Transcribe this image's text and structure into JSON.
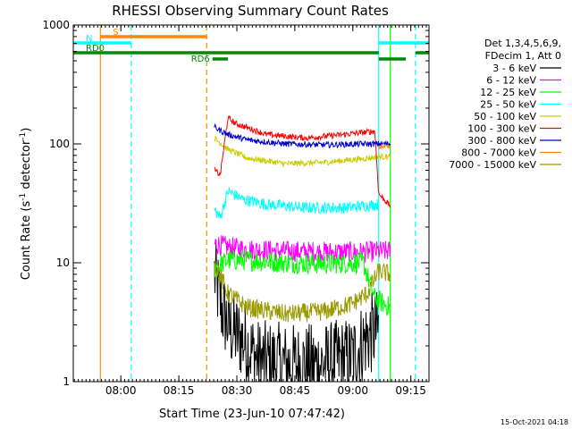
{
  "chart_data": {
    "type": "line",
    "title": "RHESSI Observing Summary Count Rates",
    "xlabel": "Start Time (23-Jun-10 07:47:42)",
    "ylabel_main": "Count Rate (s",
    "ylabel_sup": "-1",
    "ylabel_mid": " detector",
    "ylabel_end": ")",
    "x_unit": "minutes after 07:47:42",
    "xlim": [
      0,
      92
    ],
    "ylim": [
      1,
      1000
    ],
    "y_scale": "log",
    "x_ticks": [
      {
        "label": "08:00",
        "value": 12.3
      },
      {
        "label": "08:15",
        "value": 27.3
      },
      {
        "label": "08:30",
        "value": 42.3
      },
      {
        "label": "08:45",
        "value": 57.3
      },
      {
        "label": "09:00",
        "value": 72.3
      },
      {
        "label": "09:15",
        "value": 87.3
      }
    ],
    "y_ticks": [
      {
        "label": "1",
        "value": 1
      },
      {
        "label": "10",
        "value": 10
      },
      {
        "label": "100",
        "value": 100
      },
      {
        "label": "1000",
        "value": 1000
      }
    ],
    "legend_header": [
      "Det 1,3,4,5,6,9,",
      "FDecim 1, Att 0"
    ],
    "legend_position": "right",
    "footer_date": "15-Oct-2021 04:18",
    "series": [
      {
        "name": "3 - 6 keV",
        "color": "#000000",
        "start": 36.5,
        "end": 79.0,
        "x": [
          36.5,
          38.5,
          40.5,
          44,
          48,
          56,
          64,
          72,
          76,
          79
        ],
        "y": [
          8,
          4,
          2.8,
          2.2,
          1.5,
          1.4,
          1.4,
          1.6,
          2.4,
          2.7
        ],
        "noise": 0.35
      },
      {
        "name": "6 - 12 keV",
        "color": "#ff00ff",
        "start": 36.5,
        "end": 82.0,
        "x": [
          36.5,
          40,
          45,
          55,
          65,
          75,
          79,
          82
        ],
        "y": [
          14.5,
          13.5,
          13,
          12.5,
          12.3,
          12.3,
          12.5,
          12.5
        ],
        "noise": 0.09
      },
      {
        "name": "12 - 25 keV",
        "color": "#00ff00",
        "start": 36.5,
        "end": 82.0,
        "x": [
          36.5,
          40,
          45,
          55,
          65,
          75,
          78,
          82
        ],
        "y": [
          9,
          10.5,
          10.5,
          10,
          9.8,
          10,
          5,
          4.2
        ],
        "noise": 0.09
      },
      {
        "name": "25 - 50 keV",
        "color": "#00ffff",
        "start": 36.5,
        "end": 79.0,
        "x": [
          36.5,
          38,
          40,
          44,
          50,
          60,
          70,
          79
        ],
        "y": [
          28,
          24,
          40,
          34,
          31,
          29,
          29,
          31
        ],
        "noise": 0.05
      },
      {
        "name": "50 - 100 keV",
        "color": "#cccc00",
        "start": 36.5,
        "end": 82.0,
        "x": [
          36.5,
          40,
          45,
          55,
          65,
          75,
          79,
          82
        ],
        "y": [
          112,
          90,
          76,
          68,
          70,
          75,
          78,
          78
        ],
        "noise": 0.025
      },
      {
        "name": "100 - 300 keV",
        "color": "#ff0000",
        "start": 36.5,
        "end": 82.0,
        "x": [
          36.5,
          38,
          40,
          42,
          50,
          60,
          70,
          78,
          79,
          82
        ],
        "y": [
          60,
          55,
          165,
          148,
          120,
          112,
          120,
          128,
          38,
          30
        ],
        "noise": 0.025
      },
      {
        "name": "300 - 800 keV",
        "color": "#0000cc",
        "start": 36.5,
        "end": 82.0,
        "x": [
          36.5,
          40,
          45,
          55,
          65,
          75,
          79,
          82
        ],
        "y": [
          138,
          120,
          108,
          100,
          98,
          100,
          100,
          100
        ],
        "noise": 0.025
      },
      {
        "name": "800 - 7000 keV",
        "color": "#ff8800",
        "start": 79.0,
        "end": 82.0,
        "x": [
          79,
          82
        ],
        "y": [
          95,
          95
        ],
        "noise": 0.015
      },
      {
        "name": "7000 - 15000 keV",
        "color": "#999900",
        "start": 36.5,
        "end": 82.0,
        "x": [
          36.5,
          40,
          45,
          55,
          65,
          72,
          76,
          79,
          82
        ],
        "y": [
          10,
          5.5,
          4.2,
          3.7,
          3.9,
          4.5,
          5.5,
          8.5,
          8
        ],
        "noise": 0.08
      }
    ],
    "flags": [
      {
        "label": "S",
        "color": "#ff8800",
        "start": 7.0,
        "end": 34.5,
        "y_level": 1
      },
      {
        "label": "N",
        "color": "#00ffff",
        "start": 0.0,
        "end": 15.0,
        "y_level": 2
      },
      {
        "label": "",
        "color": "#00ffff",
        "start": 79.0,
        "end": 92.0,
        "y_level": 2
      },
      {
        "label": "RD0",
        "color": "#008800",
        "start": 0.0,
        "end": 79.0,
        "y_level": 3
      },
      {
        "label": "",
        "color": "#008800",
        "start": 88.5,
        "end": 92.0,
        "y_level": 3
      },
      {
        "label": "RD6",
        "color": "#008800",
        "start": 36.0,
        "end": 40.0,
        "y_level": 4
      },
      {
        "label": "",
        "color": "#008800",
        "start": 79.0,
        "end": 86.0,
        "y_level": 4
      }
    ],
    "vlines": [
      {
        "x": 7.0,
        "color": "#ff8800",
        "style": "solid"
      },
      {
        "x": 15.0,
        "color": "#00ffff",
        "style": "dashed"
      },
      {
        "x": 34.5,
        "color": "#ff8800",
        "style": "dashed"
      },
      {
        "x": 79.0,
        "color": "#00ffff",
        "style": "solid"
      },
      {
        "x": 82.0,
        "color": "#00ff00",
        "style": "solid"
      },
      {
        "x": 88.5,
        "color": "#00ffff",
        "style": "dashed"
      }
    ]
  }
}
